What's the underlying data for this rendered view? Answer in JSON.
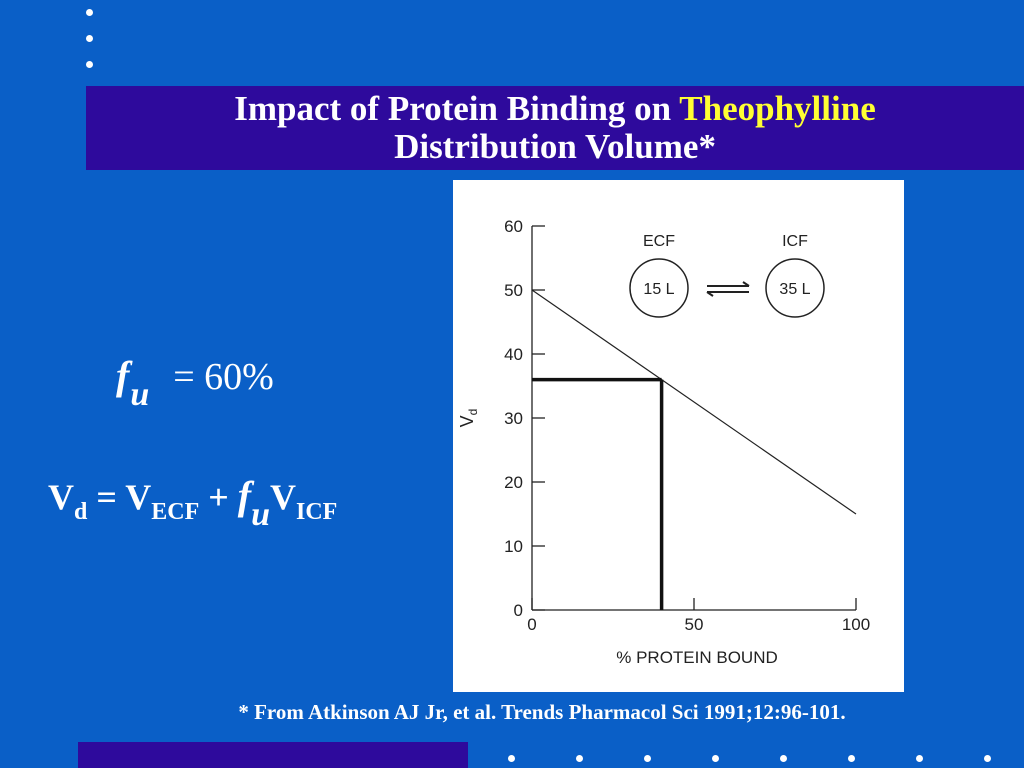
{
  "title": {
    "line1_prefix": "Impact of Protein Binding on ",
    "line1_accent": "Theophylline",
    "line2": "Distribution Volume",
    "asterisk": "*"
  },
  "formulas": {
    "fu_symbol": "f",
    "fu_sub": "u",
    "fu_eq": "= 60%",
    "vd_V": "V",
    "vd_sub": "d",
    "vd_eq": " = V",
    "vd_ecf": "ECF",
    "vd_plus": " + ",
    "vd_f": "f",
    "vd_u": "u",
    "vd_V2": "V",
    "vd_icf": "ICF"
  },
  "footnote": "* From Atkinson AJ Jr, et al. Trends Pharmacol Sci 1991;12:96-101.",
  "colors": {
    "background": "#0a5fc7",
    "title_bar": "#2e0a9c",
    "title_accent": "#ffff33"
  },
  "chart_data": {
    "type": "line",
    "xlabel": "% PROTEIN BOUND",
    "ylabel": "V",
    "ylabel_sub": "d",
    "xlim": [
      0,
      100
    ],
    "ylim": [
      0,
      60
    ],
    "xticks": [
      0,
      50,
      100
    ],
    "xtick_labels": [
      "0",
      "50",
      "100"
    ],
    "yticks": [
      0,
      10,
      20,
      30,
      40,
      50,
      60
    ],
    "ytick_labels": [
      "0",
      "10",
      "20",
      "30",
      "40",
      "50",
      "60"
    ],
    "grid": false,
    "series": [
      {
        "x": [
          0,
          100
        ],
        "y": [
          50,
          15
        ]
      }
    ],
    "highlight": {
      "x": 40,
      "y": 36
    },
    "inset": {
      "ecf_label": "ECF",
      "ecf_value": "15 L",
      "icf_label": "ICF",
      "icf_value": "35 L"
    }
  }
}
